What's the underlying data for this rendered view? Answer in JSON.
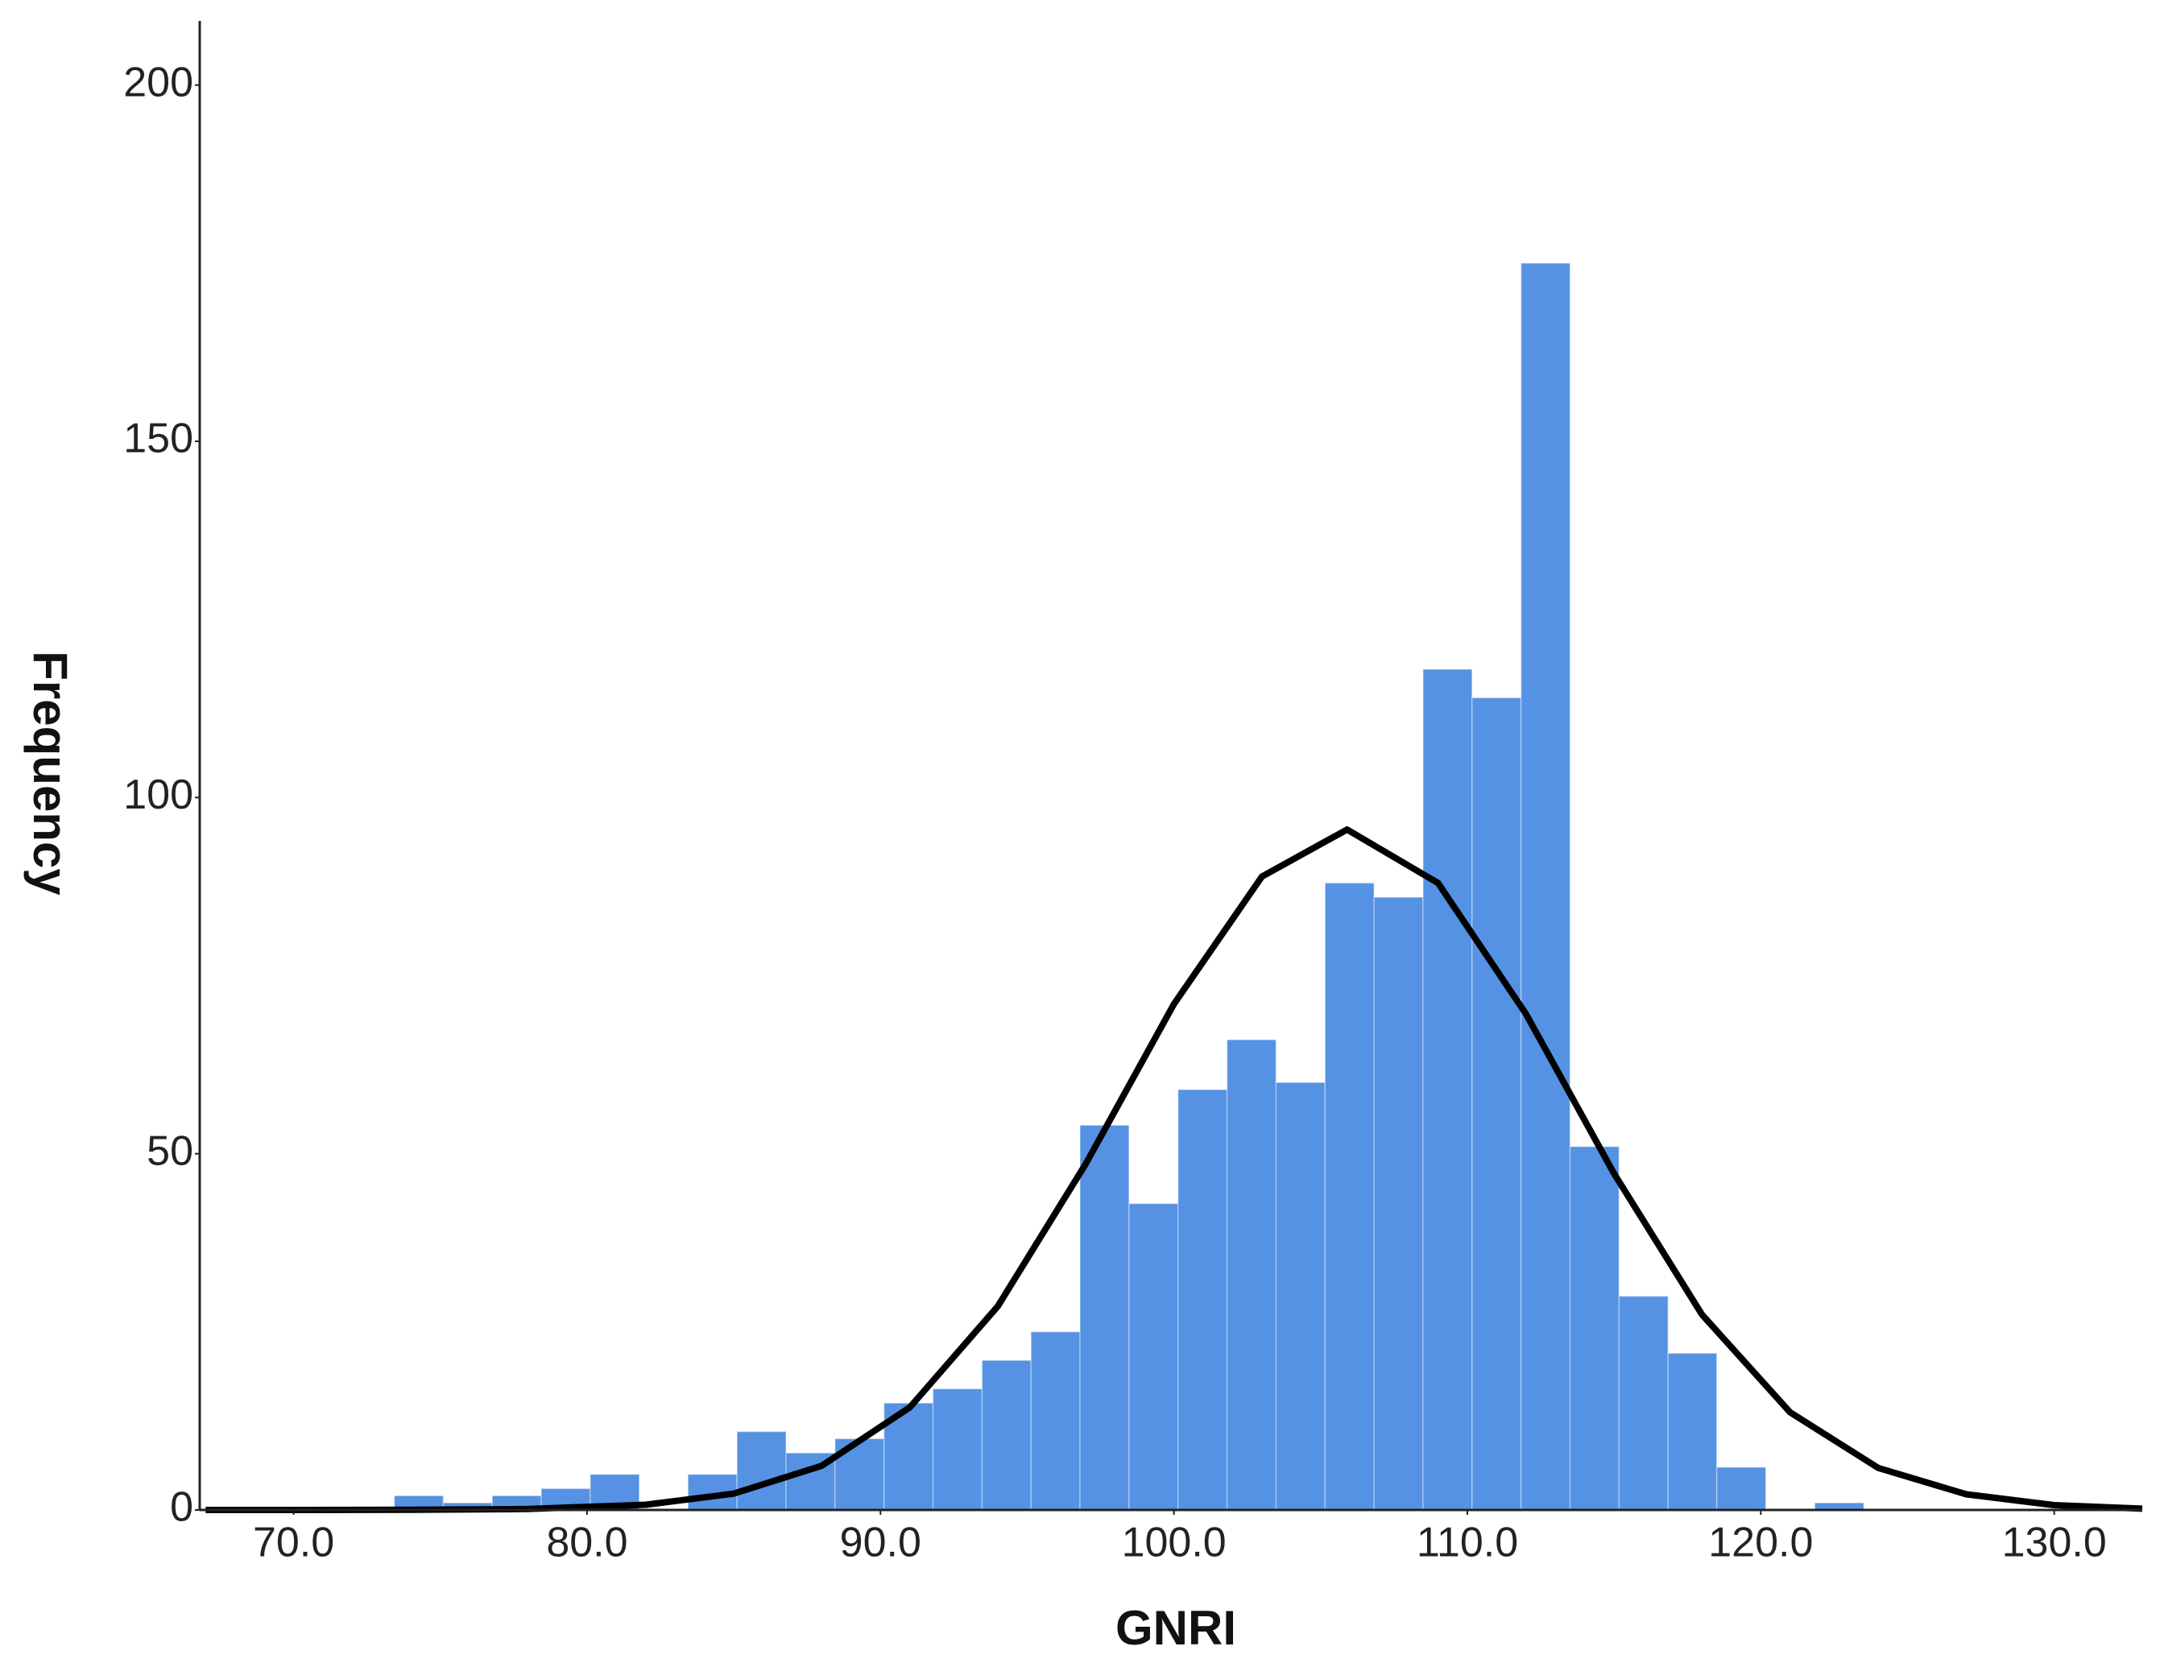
{
  "chart_data": {
    "type": "histogram",
    "x_label": "GNRI",
    "y_label": "Frequency",
    "color": "#5592e3",
    "bins": [
      73.43,
      75.1,
      76.77,
      78.44,
      80.11,
      81.78,
      83.44,
      85.11,
      86.78,
      88.45,
      90.12,
      91.79,
      93.46,
      95.13,
      96.8,
      98.47,
      100.14,
      101.81,
      103.48,
      105.15,
      106.82,
      108.49,
      110.16,
      111.83,
      113.5,
      115.17,
      116.84,
      118.5,
      120.17,
      121.84,
      123.51
    ],
    "values": [
      2,
      1,
      2,
      3,
      5,
      0,
      5,
      11,
      8,
      10,
      15,
      17,
      21,
      25,
      54,
      43,
      59,
      66,
      60,
      88,
      86,
      118,
      114,
      175,
      51,
      30,
      22,
      6,
      0,
      1
    ],
    "curve": {
      "color": "#000000",
      "x": [
        67,
        70,
        74,
        78,
        82,
        85,
        88,
        91,
        94,
        97,
        100,
        103,
        105.9,
        109,
        112,
        115,
        118,
        121,
        124,
        127,
        130,
        133
      ],
      "values": [
        0.0,
        0.0,
        0.02,
        0.13,
        0.73,
        2.3,
        6.2,
        14.4,
        28.6,
        48.6,
        71.0,
        88.9,
        95.5,
        88.0,
        69.6,
        47.2,
        27.4,
        13.7,
        5.9,
        2.2,
        0.68,
        0.18
      ]
    },
    "xlim": [
      66.8,
      133
    ],
    "ylim": [
      0,
      209
    ],
    "xticks": [
      {
        "value": 70,
        "label": "70.0"
      },
      {
        "value": 80,
        "label": "80.0"
      },
      {
        "value": 90,
        "label": "90.0"
      },
      {
        "value": 100,
        "label": "100.0"
      },
      {
        "value": 110,
        "label": "110.0"
      },
      {
        "value": 120,
        "label": "120.0"
      },
      {
        "value": 130,
        "label": "130.0"
      }
    ],
    "yticks": [
      0,
      50,
      100,
      150,
      200
    ]
  }
}
